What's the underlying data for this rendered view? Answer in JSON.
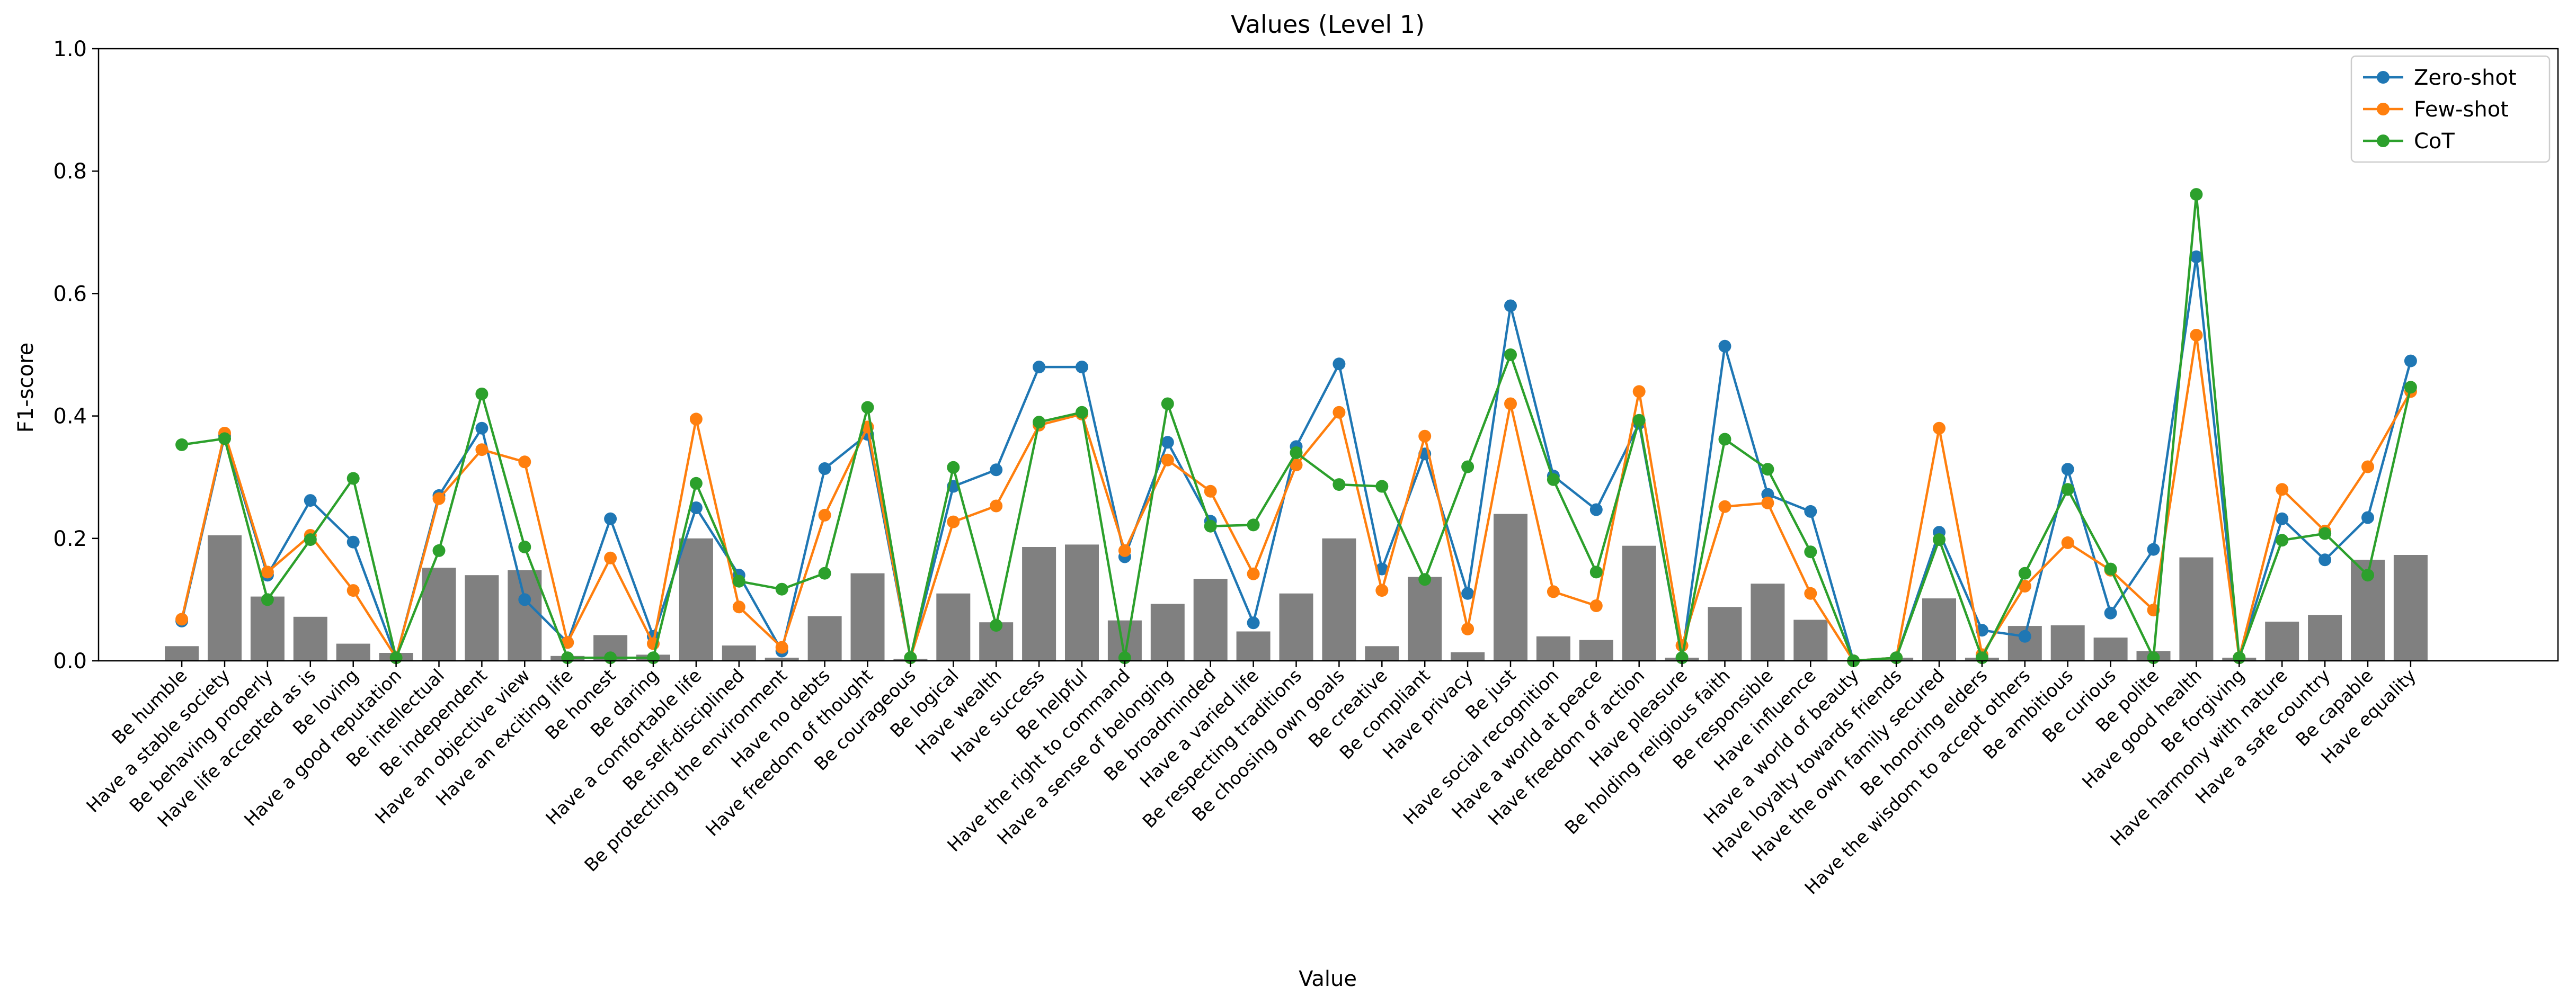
{
  "chart_data": {
    "type": "bar",
    "title": "Values (Level 1)",
    "xlabel": "Value",
    "ylabel": "F1-score",
    "ylim": [
      0,
      1.0
    ],
    "yticks": [
      "0.0",
      "0.2",
      "0.4",
      "0.6",
      "0.8",
      "1.0"
    ],
    "grid": false,
    "legend_position": "top-right",
    "categories": [
      "Be humble",
      "Have a stable society",
      "Be behaving properly",
      "Have life accepted as is",
      "Be loving",
      "Have a good reputation",
      "Be intellectual",
      "Be independent",
      "Have an objective view",
      "Have an exciting life",
      "Be honest",
      "Be daring",
      "Have a comfortable life",
      "Be self-disciplined",
      "Be protecting the environment",
      "Have no debts",
      "Have freedom of thought",
      "Be courageous",
      "Be logical",
      "Have wealth",
      "Have success",
      "Be helpful",
      "Have the right to command",
      "Have a sense of belonging",
      "Be broadminded",
      "Have a varied life",
      "Be respecting traditions",
      "Be choosing own goals",
      "Be creative",
      "Be compliant",
      "Have privacy",
      "Be just",
      "Have social recognition",
      "Have a world at peace",
      "Have freedom of action",
      "Have pleasure",
      "Be holding religious faith",
      "Be responsible",
      "Have influence",
      "Have a world of beauty",
      "Have loyalty towards friends",
      "Have the own family secured",
      "Be honoring elders",
      "Have the wisdom to accept others",
      "Be ambitious",
      "Be curious",
      "Be polite",
      "Have good health",
      "Be forgiving",
      "Have harmony with nature",
      "Have a safe country",
      "Be capable",
      "Have equality"
    ],
    "bar_color": "#808080",
    "bars": [
      0.024,
      0.205,
      0.105,
      0.072,
      0.028,
      0.013,
      0.152,
      0.14,
      0.148,
      0.008,
      0.042,
      0.01,
      0.2,
      0.025,
      0.005,
      0.073,
      0.143,
      0.003,
      0.11,
      0.063,
      0.186,
      0.19,
      0.066,
      0.093,
      0.134,
      0.048,
      0.11,
      0.2,
      0.024,
      0.137,
      0.014,
      0.24,
      0.04,
      0.034,
      0.188,
      0.005,
      0.088,
      0.126,
      0.067,
      0.0,
      0.005,
      0.102,
      0.005,
      0.057,
      0.058,
      0.038,
      0.016,
      0.169,
      0.005,
      0.064,
      0.075,
      0.165,
      0.173
    ],
    "series": [
      {
        "name": "Zero-shot",
        "color": "#1f77b4",
        "values": [
          0.065,
          0.368,
          0.14,
          0.262,
          0.194,
          0.005,
          0.27,
          0.38,
          0.1,
          0.03,
          0.232,
          0.04,
          0.25,
          0.14,
          0.016,
          0.314,
          0.37,
          0.005,
          0.285,
          0.312,
          0.48,
          0.48,
          0.17,
          0.357,
          0.228,
          0.062,
          0.35,
          0.485,
          0.15,
          0.338,
          0.11,
          0.58,
          0.302,
          0.247,
          0.388,
          0.005,
          0.514,
          0.272,
          0.244,
          0.0,
          0.005,
          0.21,
          0.05,
          0.04,
          0.313,
          0.078,
          0.182,
          0.66,
          0.005,
          0.232,
          0.165,
          0.234,
          0.49
        ]
      },
      {
        "name": "Few-shot",
        "color": "#ff7f0e",
        "values": [
          0.068,
          0.372,
          0.145,
          0.205,
          0.115,
          0.005,
          0.265,
          0.345,
          0.325,
          0.03,
          0.168,
          0.028,
          0.395,
          0.088,
          0.022,
          0.238,
          0.382,
          0.005,
          0.227,
          0.253,
          0.385,
          0.403,
          0.18,
          0.328,
          0.277,
          0.142,
          0.32,
          0.406,
          0.115,
          0.367,
          0.052,
          0.42,
          0.113,
          0.09,
          0.44,
          0.025,
          0.252,
          0.258,
          0.11,
          0.0,
          0.005,
          0.38,
          0.01,
          0.122,
          0.193,
          0.148,
          0.083,
          0.532,
          0.005,
          0.28,
          0.212,
          0.317,
          0.44
        ]
      },
      {
        "name": "CoT",
        "color": "#2ca02c",
        "values": [
          0.353,
          0.363,
          0.1,
          0.198,
          0.298,
          0.005,
          0.18,
          0.436,
          0.186,
          0.005,
          0.005,
          0.005,
          0.29,
          0.13,
          0.117,
          0.143,
          0.414,
          0.005,
          0.316,
          0.058,
          0.39,
          0.406,
          0.005,
          0.42,
          0.22,
          0.222,
          0.34,
          0.288,
          0.285,
          0.133,
          0.317,
          0.5,
          0.296,
          0.145,
          0.393,
          0.005,
          0.362,
          0.313,
          0.178,
          0.0,
          0.005,
          0.198,
          0.005,
          0.143,
          0.28,
          0.15,
          0.005,
          0.762,
          0.005,
          0.197,
          0.208,
          0.14,
          0.447
        ]
      }
    ]
  }
}
